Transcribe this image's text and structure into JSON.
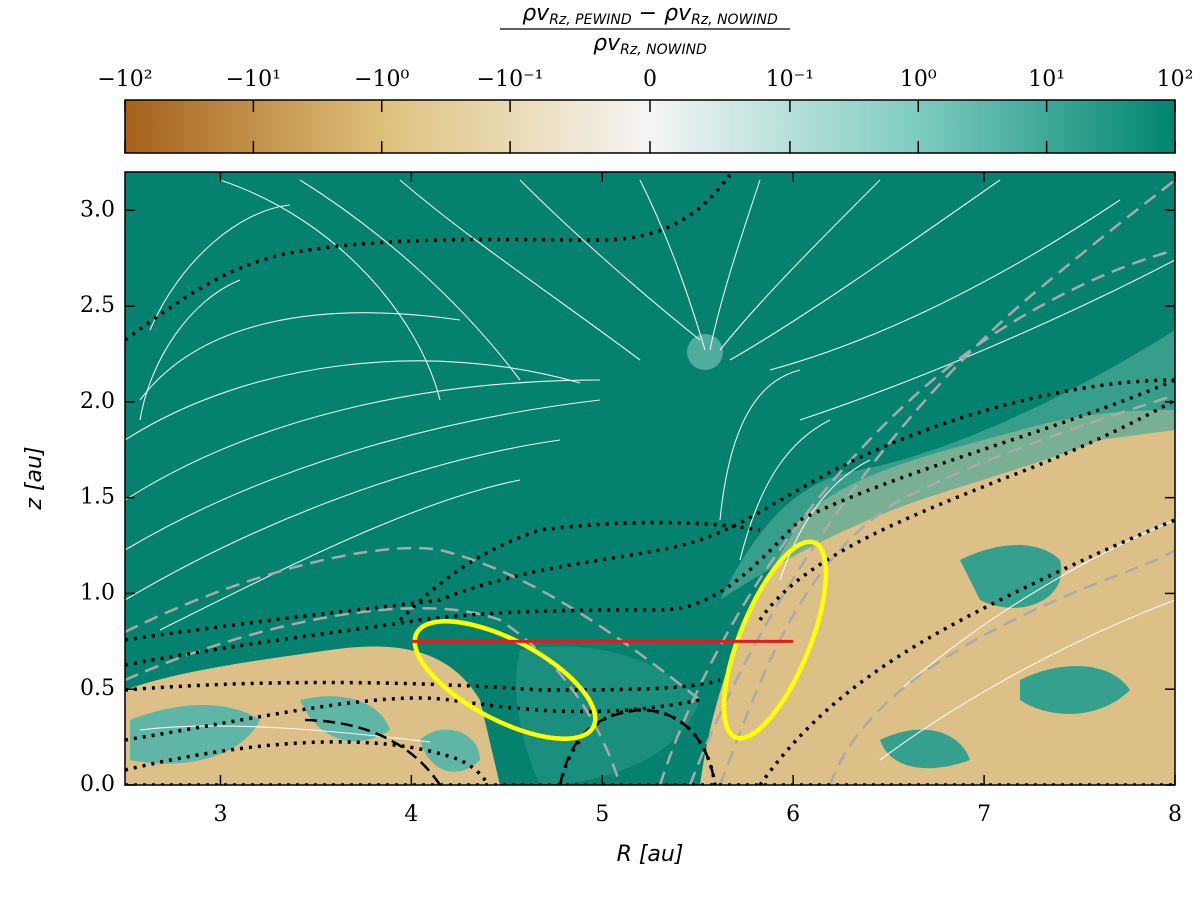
{
  "chart_data": {
    "type": "heatmap",
    "xlabel": "R [au]",
    "ylabel": "z [au]",
    "xlim": [
      2.5,
      8
    ],
    "ylim": [
      0,
      3.2
    ],
    "xticks": [
      3,
      4,
      5,
      6,
      7,
      8
    ],
    "yticks": [
      {
        "value": 0,
        "label": "0.0"
      },
      0.5,
      {
        "value": 1,
        "label": "1.0"
      },
      1.5,
      {
        "value": 2,
        "label": "2.0"
      },
      2.5,
      {
        "value": 3,
        "label": "3.0"
      }
    ],
    "colorbar": {
      "scale": "symlog",
      "linthresh": 0.1,
      "clim": [
        -100,
        100
      ],
      "colormap": [
        "#a6611a",
        "#dfc27d",
        "#f5f5f5",
        "#80cdc1",
        "#018571"
      ],
      "ticks": [
        {
          "value": -100,
          "label": "−10²"
        },
        {
          "value": -10,
          "label": "−10¹"
        },
        {
          "value": -1,
          "label": "−10⁰"
        },
        {
          "value": -0.1,
          "label": "−10⁻¹"
        },
        0,
        {
          "value": 0.1,
          "label": "10⁻¹"
        },
        {
          "value": 1,
          "label": "10⁰"
        },
        {
          "value": 10,
          "label": "10¹"
        },
        {
          "value": 100,
          "label": "10²"
        }
      ],
      "label": {
        "numerator": [
          "ρv",
          "Rz, PEWIND",
          " − ρv",
          "Rz, NOWIND"
        ],
        "denominator": [
          "ρv",
          "Rz, NOWIND"
        ]
      }
    },
    "segments": [
      {
        "x": [
          4,
          6
        ],
        "y": [
          0.75,
          0.75
        ],
        "color": "#e41a1c"
      }
    ]
  }
}
